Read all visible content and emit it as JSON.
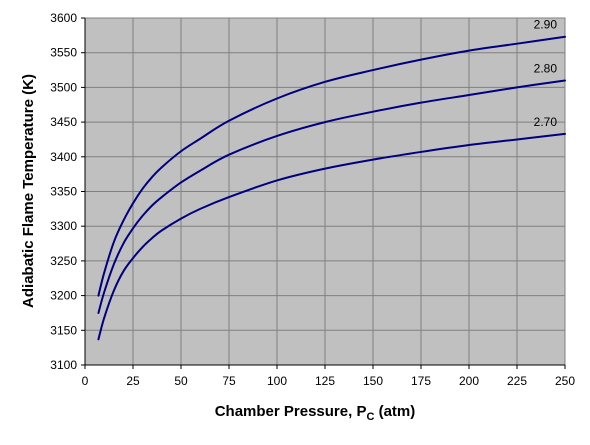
{
  "chart_data": {
    "type": "line",
    "title": "",
    "xlabel": "Chamber Pressure, P",
    "xlabel_subscript": "C",
    "xlabel_suffix": " (atm)",
    "ylabel": "Adiabatic Flame Temperature (K)",
    "xlim": [
      0,
      250
    ],
    "ylim": [
      3100,
      3600
    ],
    "x_ticks": [
      0,
      25,
      50,
      75,
      100,
      125,
      150,
      175,
      200,
      225,
      250
    ],
    "y_ticks": [
      3100,
      3150,
      3200,
      3250,
      3300,
      3350,
      3400,
      3450,
      3500,
      3550,
      3600
    ],
    "grid": true,
    "legend": "none",
    "colors": {
      "plot_background": "#c0c0c0",
      "gridline": "#808080",
      "series_line": "#000080"
    },
    "series": [
      {
        "name": "2.90",
        "x": [
          7,
          10,
          15,
          20,
          25,
          30,
          35,
          40,
          50,
          60,
          75,
          100,
          125,
          150,
          175,
          200,
          225,
          250
        ],
        "y": [
          3200,
          3233,
          3277,
          3308,
          3333,
          3354,
          3371,
          3385,
          3408,
          3426,
          3452,
          3484,
          3508,
          3525,
          3540,
          3553,
          3563,
          3573
        ]
      },
      {
        "name": "2.80",
        "x": [
          7,
          10,
          15,
          20,
          25,
          30,
          35,
          40,
          50,
          60,
          75,
          100,
          125,
          150,
          175,
          200,
          225,
          250
        ],
        "y": [
          3175,
          3205,
          3245,
          3275,
          3297,
          3315,
          3330,
          3342,
          3363,
          3380,
          3403,
          3430,
          3450,
          3465,
          3478,
          3489,
          3500,
          3510
        ]
      },
      {
        "name": "2.70",
        "x": [
          7,
          10,
          15,
          20,
          25,
          30,
          35,
          40,
          50,
          60,
          75,
          100,
          125,
          150,
          175,
          200,
          225,
          250
        ],
        "y": [
          3137,
          3168,
          3207,
          3235,
          3254,
          3270,
          3283,
          3294,
          3311,
          3325,
          3342,
          3366,
          3383,
          3396,
          3407,
          3417,
          3425,
          3433
        ]
      }
    ]
  }
}
